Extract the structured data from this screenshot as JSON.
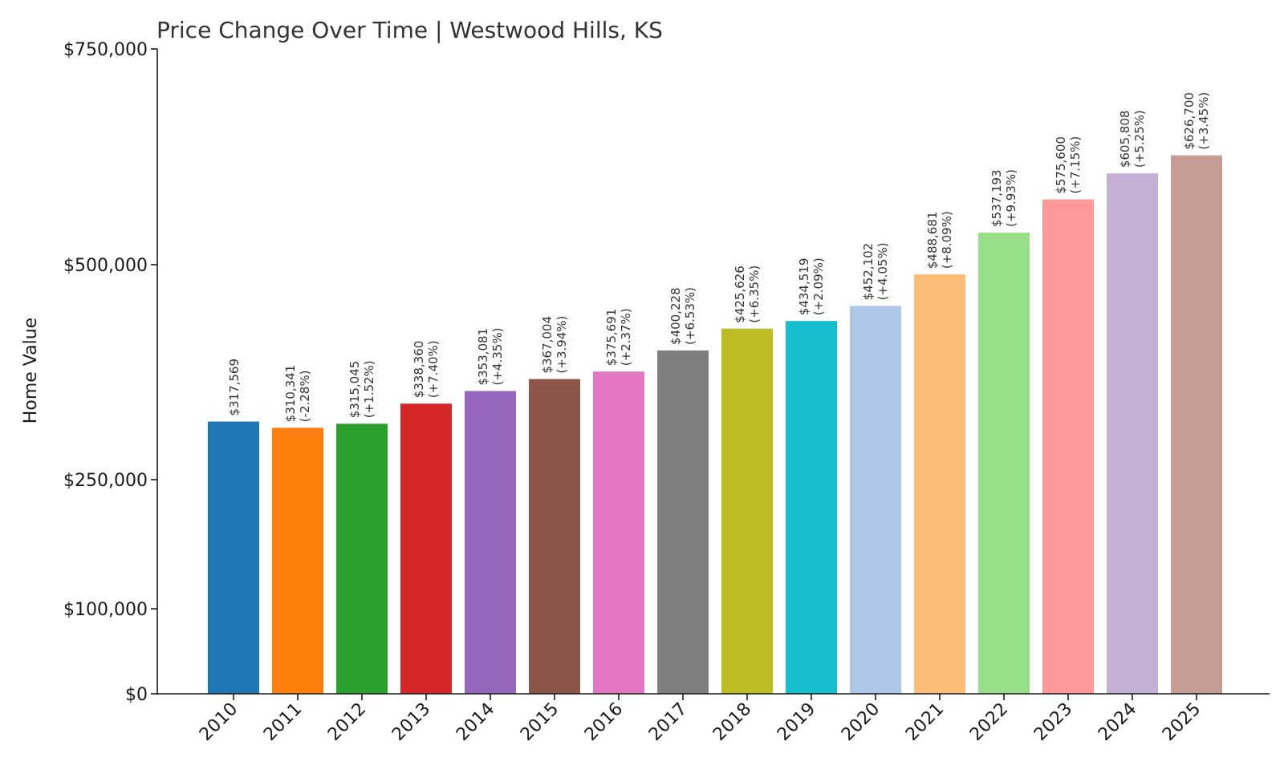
{
  "chart_data": {
    "type": "bar",
    "title": "Price Change Over Time | Westwood Hills, KS",
    "xlabel": "",
    "ylabel": "Home Value",
    "ylim": [
      0,
      750000
    ],
    "yticks": [
      0,
      100000,
      250000,
      500000,
      750000
    ],
    "ytick_labels": [
      "$0",
      "$100,000",
      "$250,000",
      "$500,000",
      "$750,000"
    ],
    "grid": false,
    "categories": [
      "2010",
      "2011",
      "2012",
      "2013",
      "2014",
      "2015",
      "2016",
      "2017",
      "2018",
      "2019",
      "2020",
      "2021",
      "2022",
      "2023",
      "2024",
      "2025"
    ],
    "values": [
      317569,
      310341,
      315045,
      338360,
      353081,
      367004,
      375691,
      400228,
      425626,
      434519,
      452102,
      488681,
      537193,
      575600,
      605808,
      626700
    ],
    "value_labels": [
      "$317,569",
      "$310,341",
      "$315,045",
      "$338,360",
      "$353,081",
      "$367,004",
      "$375,691",
      "$400,228",
      "$425,626",
      "$434,519",
      "$452,102",
      "$488,681",
      "$537,193",
      "$575,600",
      "$605,808",
      "$626,700"
    ],
    "change_labels": [
      "",
      "(-2.28%)",
      "(+1.52%)",
      "(+7.40%)",
      "(+4.35%)",
      "(+3.94%)",
      "(+2.37%)",
      "(+6.53%)",
      "(+6.35%)",
      "(+2.09%)",
      "(+4.05%)",
      "(+8.09%)",
      "(+9.93%)",
      "(+7.15%)",
      "(+5.25%)",
      "(+3.45%)"
    ],
    "colors": [
      "#1f77b4",
      "#ff7f0e",
      "#2ca02c",
      "#d62728",
      "#9467bd",
      "#8c564b",
      "#e377c2",
      "#7f7f7f",
      "#bcbd22",
      "#17becf",
      "#aec7e8",
      "#ffbb78",
      "#98df8a",
      "#ff9896",
      "#c5b0d5",
      "#c49c94"
    ]
  }
}
